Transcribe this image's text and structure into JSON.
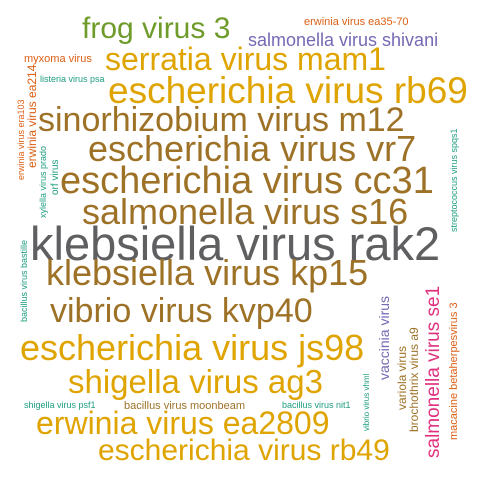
{
  "colors": {
    "gray": "#5f5f62",
    "brown": "#9d7227",
    "gold": "#dfa400",
    "green": "#6e9b2a",
    "purple": "#7668b4",
    "orange": "#dd5f14",
    "teal": "#1e9e80",
    "pink": "#e0317f"
  },
  "words": {
    "frog_virus_3": "frog virus 3",
    "salmonella_virus_shivani": "salmonella virus shivani",
    "erwinia_virus_ea35_70": "erwinia virus ea35-70",
    "myxoma_virus": "myxoma virus",
    "serratia_virus_mam1": "serratia virus mam1",
    "listeria_virus_psa": "listeria virus psa",
    "escherichia_virus_rb69": "escherichia virus rb69",
    "sinorhizobium_virus_m12": "sinorhizobium virus m12",
    "escherichia_virus_vr7": "escherichia virus vr7",
    "escherichia_virus_cc31": "escherichia virus cc31",
    "salmonella_virus_s16": "salmonella virus s16",
    "klebsiella_virus_rak2": "klebsiella virus rak2",
    "klebsiella_virus_kp15": "klebsiella virus kp15",
    "vibrio_virus_kvp40": "vibrio virus kvp40",
    "escherichia_virus_js98": "escherichia virus js98",
    "shigella_virus_ag3": "shigella virus ag3",
    "bacillus_virus_moonbeam": "bacillus virus moonbeam",
    "shigella_virus_psf1": "shigella virus psf1",
    "bacillus_virus_nit1": "bacillus virus nit1",
    "erwinia_virus_ea2809": "erwinia virus ea2809",
    "escherichia_virus_rb49": "escherichia virus rb49",
    "erwinia_virus_ea214": "erwinia virus ea214",
    "erwinia_virus_era103": "erwinia virus era103",
    "xylella_virus_prado": "xylella virus prado",
    "orf_virus": "orf virus",
    "bacillus_virus_bastille": "bacillus virus bastille",
    "streptococcus_virus_spqs1": "streptococcus virus spqs1",
    "macacine_betaherpesvirus_3": "macacine betaherpesvirus 3",
    "salmonella_virus_se1": "salmonella virus se1",
    "brochothrix_virus_a9": "brochothrix virus a9",
    "variola_virus": "variola virus",
    "vaccinia_virus": "vaccinia virus",
    "vibrio_virus_vhml": "vibrio virus vhml"
  }
}
